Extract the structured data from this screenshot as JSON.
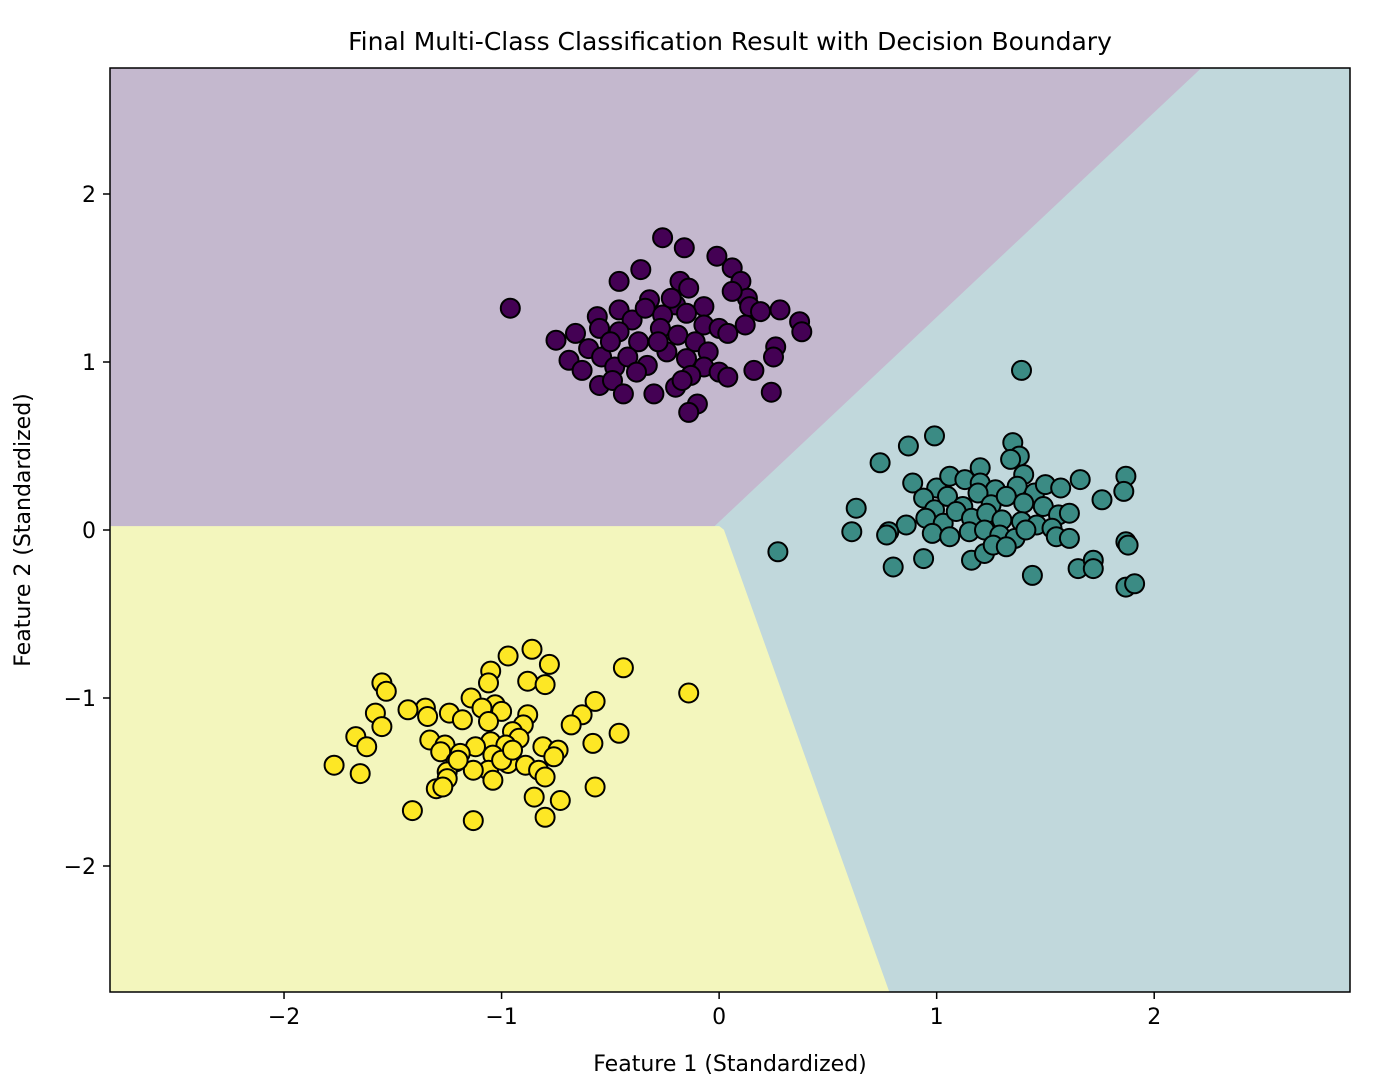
{
  "chart_data": {
    "type": "scatter",
    "title": "Final Multi-Class Classification Result with Decision Boundary",
    "xlabel": "Feature 1 (Standardized)",
    "ylabel": "Feature 2 (Standardized)",
    "xlim": [
      -2.8,
      2.9
    ],
    "ylim": [
      -2.75,
      2.75
    ],
    "xticks": [
      -2,
      -1,
      0,
      1,
      2
    ],
    "yticks": [
      -2,
      -1,
      0,
      1,
      2
    ],
    "xtick_labels": [
      "−2",
      "−1",
      "0",
      "1",
      "2"
    ],
    "ytick_labels": [
      "−2",
      "−1",
      "0",
      "1",
      "2"
    ],
    "grid": false,
    "regions": [
      {
        "name": "class-0",
        "color": "#c4b8ce",
        "polygon": [
          [
            -2.8,
            2.75
          ],
          [
            2.22,
            2.75
          ],
          [
            -0.02,
            0.02
          ],
          [
            -2.8,
            0.02
          ]
        ]
      },
      {
        "name": "class-1",
        "color": "#c1d8dc",
        "polygon": [
          [
            2.22,
            2.75
          ],
          [
            2.9,
            2.75
          ],
          [
            2.9,
            -2.75
          ],
          [
            0.78,
            -2.75
          ],
          [
            0.02,
            0.0
          ],
          [
            -0.02,
            0.02
          ]
        ]
      },
      {
        "name": "class-2",
        "color": "#f3f6bd",
        "polygon": [
          [
            -2.8,
            0.02
          ],
          [
            0.0,
            0.02
          ],
          [
            0.02,
            0.0
          ],
          [
            0.78,
            -2.75
          ],
          [
            -2.8,
            -2.75
          ]
        ]
      }
    ],
    "series": [
      {
        "name": "class-0",
        "color": "#440154",
        "points": [
          [
            -0.96,
            1.32
          ],
          [
            -0.26,
            1.74
          ],
          [
            -0.16,
            1.68
          ],
          [
            -0.01,
            1.63
          ],
          [
            0.06,
            1.56
          ],
          [
            -0.36,
            1.55
          ],
          [
            -0.46,
            1.48
          ],
          [
            -0.18,
            1.48
          ],
          [
            -0.14,
            1.44
          ],
          [
            0.1,
            1.48
          ],
          [
            0.13,
            1.38
          ],
          [
            0.06,
            1.42
          ],
          [
            -0.32,
            1.37
          ],
          [
            -0.2,
            1.34
          ],
          [
            -0.07,
            1.33
          ],
          [
            0.14,
            1.33
          ],
          [
            0.19,
            1.3
          ],
          [
            0.28,
            1.31
          ],
          [
            0.37,
            1.24
          ],
          [
            0.38,
            1.18
          ],
          [
            -0.56,
            1.27
          ],
          [
            -0.46,
            1.31
          ],
          [
            -0.4,
            1.25
          ],
          [
            -0.34,
            1.32
          ],
          [
            -0.26,
            1.28
          ],
          [
            -0.15,
            1.29
          ],
          [
            -0.07,
            1.22
          ],
          [
            0.0,
            1.2
          ],
          [
            0.04,
            1.17
          ],
          [
            0.12,
            1.22
          ],
          [
            -0.75,
            1.13
          ],
          [
            -0.66,
            1.17
          ],
          [
            -0.55,
            1.2
          ],
          [
            -0.46,
            1.18
          ],
          [
            -0.37,
            1.12
          ],
          [
            -0.27,
            1.2
          ],
          [
            -0.19,
            1.16
          ],
          [
            -0.11,
            1.12
          ],
          [
            -0.05,
            1.06
          ],
          [
            0.26,
            1.09
          ],
          [
            0.25,
            1.03
          ],
          [
            -0.69,
            1.01
          ],
          [
            -0.6,
            1.08
          ],
          [
            -0.54,
            1.03
          ],
          [
            -0.48,
            0.97
          ],
          [
            -0.42,
            1.03
          ],
          [
            -0.33,
            0.98
          ],
          [
            -0.24,
            1.06
          ],
          [
            -0.15,
            1.02
          ],
          [
            -0.07,
            0.97
          ],
          [
            0.0,
            0.94
          ],
          [
            0.04,
            0.91
          ],
          [
            0.16,
            0.95
          ],
          [
            -0.63,
            0.95
          ],
          [
            -0.55,
            0.86
          ],
          [
            -0.49,
            0.89
          ],
          [
            -0.44,
            0.81
          ],
          [
            -0.3,
            0.81
          ],
          [
            -0.2,
            0.85
          ],
          [
            -0.13,
            0.92
          ],
          [
            -0.17,
            0.89
          ],
          [
            -0.1,
            0.75
          ],
          [
            -0.14,
            0.7
          ],
          [
            0.24,
            0.82
          ],
          [
            -0.22,
            1.38
          ],
          [
            -0.28,
            1.12
          ],
          [
            -0.38,
            0.94
          ],
          [
            -0.5,
            1.12
          ]
        ]
      },
      {
        "name": "class-1",
        "color": "#3b8b84",
        "points": [
          [
            1.39,
            0.95
          ],
          [
            0.99,
            0.56
          ],
          [
            1.35,
            0.52
          ],
          [
            0.87,
            0.5
          ],
          [
            1.38,
            0.44
          ],
          [
            0.74,
            0.4
          ],
          [
            1.2,
            0.37
          ],
          [
            1.34,
            0.42
          ],
          [
            1.4,
            0.33
          ],
          [
            1.66,
            0.3
          ],
          [
            1.87,
            0.32
          ],
          [
            0.89,
            0.28
          ],
          [
            1.0,
            0.25
          ],
          [
            1.06,
            0.32
          ],
          [
            1.13,
            0.3
          ],
          [
            1.2,
            0.28
          ],
          [
            1.27,
            0.24
          ],
          [
            1.37,
            0.26
          ],
          [
            1.45,
            0.22
          ],
          [
            1.5,
            0.27
          ],
          [
            1.57,
            0.25
          ],
          [
            1.76,
            0.18
          ],
          [
            1.86,
            0.23
          ],
          [
            0.94,
            0.19
          ],
          [
            0.99,
            0.12
          ],
          [
            1.05,
            0.2
          ],
          [
            1.12,
            0.14
          ],
          [
            1.19,
            0.22
          ],
          [
            1.25,
            0.15
          ],
          [
            1.32,
            0.2
          ],
          [
            1.4,
            0.16
          ],
          [
            1.49,
            0.14
          ],
          [
            1.56,
            0.09
          ],
          [
            1.61,
            0.1
          ],
          [
            0.63,
            0.13
          ],
          [
            0.86,
            0.03
          ],
          [
            0.95,
            0.07
          ],
          [
            1.03,
            0.04
          ],
          [
            1.09,
            0.11
          ],
          [
            1.16,
            0.07
          ],
          [
            1.23,
            0.1
          ],
          [
            1.3,
            0.06
          ],
          [
            1.39,
            0.05
          ],
          [
            1.46,
            0.03
          ],
          [
            1.53,
            0.01
          ],
          [
            0.61,
            -0.01
          ],
          [
            0.78,
            -0.01
          ],
          [
            0.77,
            -0.03
          ],
          [
            0.98,
            -0.02
          ],
          [
            1.06,
            -0.04
          ],
          [
            1.15,
            -0.01
          ],
          [
            1.22,
            0.0
          ],
          [
            1.29,
            -0.03
          ],
          [
            1.36,
            -0.05
          ],
          [
            1.41,
            0.0
          ],
          [
            1.55,
            -0.04
          ],
          [
            1.61,
            -0.05
          ],
          [
            0.27,
            -0.13
          ],
          [
            0.94,
            -0.17
          ],
          [
            1.16,
            -0.18
          ],
          [
            1.22,
            -0.14
          ],
          [
            1.26,
            -0.09
          ],
          [
            1.32,
            -0.1
          ],
          [
            1.44,
            -0.27
          ],
          [
            1.65,
            -0.23
          ],
          [
            1.72,
            -0.18
          ],
          [
            1.72,
            -0.23
          ],
          [
            1.87,
            -0.07
          ],
          [
            1.88,
            -0.09
          ],
          [
            1.87,
            -0.34
          ],
          [
            1.91,
            -0.32
          ],
          [
            0.8,
            -0.22
          ]
        ]
      },
      {
        "name": "class-2",
        "color": "#fde725",
        "points": [
          [
            -0.86,
            -0.71
          ],
          [
            -0.97,
            -0.75
          ],
          [
            -0.78,
            -0.8
          ],
          [
            -0.44,
            -0.82
          ],
          [
            -1.05,
            -0.84
          ],
          [
            -1.55,
            -0.91
          ],
          [
            -0.88,
            -0.9
          ],
          [
            -0.8,
            -0.92
          ],
          [
            -1.06,
            -0.91
          ],
          [
            -0.14,
            -0.97
          ],
          [
            -1.53,
            -0.96
          ],
          [
            -1.14,
            -1.0
          ],
          [
            -1.03,
            -1.04
          ],
          [
            -0.57,
            -1.02
          ],
          [
            -1.09,
            -1.06
          ],
          [
            -1.35,
            -1.06
          ],
          [
            -1.43,
            -1.07
          ],
          [
            -1.24,
            -1.09
          ],
          [
            -1.58,
            -1.09
          ],
          [
            -1.0,
            -1.08
          ],
          [
            -0.88,
            -1.1
          ],
          [
            -0.63,
            -1.1
          ],
          [
            -1.34,
            -1.11
          ],
          [
            -1.18,
            -1.13
          ],
          [
            -1.06,
            -1.14
          ],
          [
            -0.9,
            -1.16
          ],
          [
            -0.68,
            -1.16
          ],
          [
            -0.95,
            -1.2
          ],
          [
            -1.55,
            -1.17
          ],
          [
            -0.46,
            -1.21
          ],
          [
            -1.67,
            -1.23
          ],
          [
            -1.62,
            -1.29
          ],
          [
            -0.92,
            -1.24
          ],
          [
            -0.58,
            -1.27
          ],
          [
            -1.33,
            -1.25
          ],
          [
            -1.05,
            -1.26
          ],
          [
            -1.26,
            -1.28
          ],
          [
            -1.12,
            -1.29
          ],
          [
            -0.98,
            -1.28
          ],
          [
            -0.81,
            -1.29
          ],
          [
            -0.74,
            -1.31
          ],
          [
            -1.19,
            -1.33
          ],
          [
            -1.28,
            -1.32
          ],
          [
            -1.04,
            -1.34
          ],
          [
            -0.76,
            -1.35
          ],
          [
            -1.21,
            -1.38
          ],
          [
            -1.77,
            -1.4
          ],
          [
            -0.97,
            -1.39
          ],
          [
            -0.89,
            -1.4
          ],
          [
            -1.06,
            -1.43
          ],
          [
            -1.13,
            -1.43
          ],
          [
            -1.25,
            -1.44
          ],
          [
            -1.65,
            -1.45
          ],
          [
            -0.83,
            -1.43
          ],
          [
            -0.8,
            -1.47
          ],
          [
            -1.04,
            -1.49
          ],
          [
            -1.25,
            -1.48
          ],
          [
            -1.3,
            -1.54
          ],
          [
            -1.27,
            -1.53
          ],
          [
            -0.57,
            -1.53
          ],
          [
            -0.85,
            -1.59
          ],
          [
            -0.73,
            -1.61
          ],
          [
            -1.41,
            -1.67
          ],
          [
            -0.8,
            -1.71
          ],
          [
            -1.13,
            -1.73
          ],
          [
            -1.0,
            -1.37
          ],
          [
            -1.2,
            -1.37
          ],
          [
            -0.95,
            -1.31
          ]
        ]
      }
    ]
  }
}
